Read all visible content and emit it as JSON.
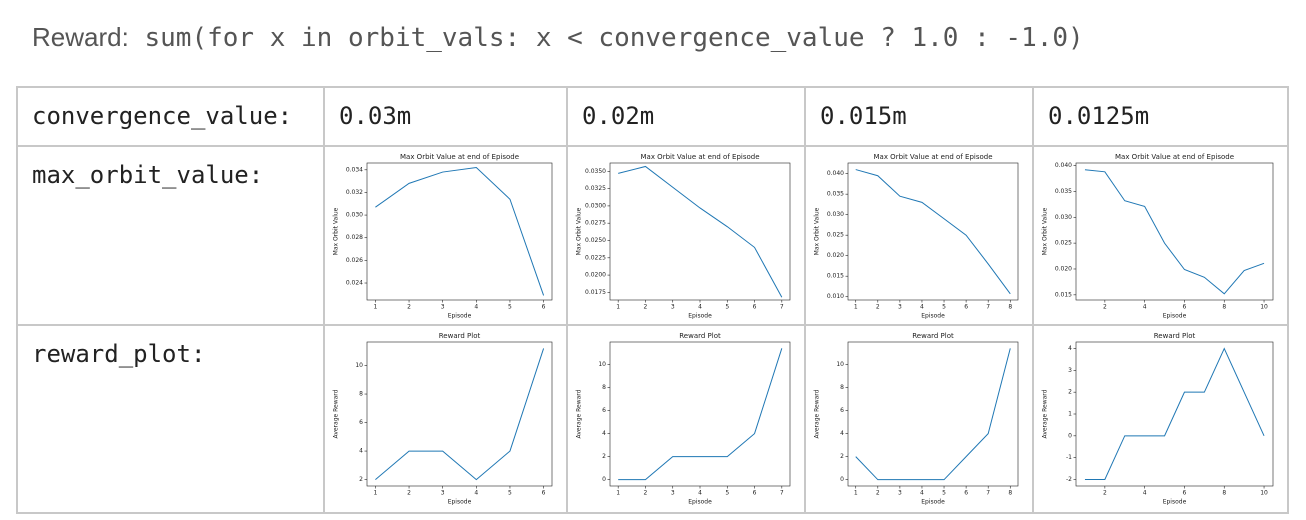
{
  "header": {
    "label": "Reward:",
    "code": "sum(for x in orbit_vals: x < convergence_value ? 1.0 : -1.0)"
  },
  "table": {
    "header_row": [
      "convergence_value:",
      "0.03m",
      "0.02m",
      "0.015m",
      "0.0125m"
    ],
    "rows": [
      {
        "label": "max_orbit_value:",
        "charts": [
          {
            "type": "line",
            "title": "Max Orbit Value at end of Episode",
            "xlabel": "Episode",
            "ylabel": "Max Orbit Value",
            "color": "#1f77b4",
            "x": [
              1,
              2,
              3,
              4,
              5,
              6
            ],
            "values": [
              0.0307,
              0.0328,
              0.0338,
              0.0342,
              0.0314,
              0.0229
            ],
            "xlim": [
              0.75,
              6.25
            ],
            "ylim": [
              0.0225,
              0.0346
            ],
            "xticks": [
              1,
              2,
              3,
              4,
              5,
              6
            ],
            "yticks": [
              0.024,
              0.026,
              0.028,
              {
                "value": 0.03,
                "label": "0.030"
              },
              0.032,
              0.034
            ]
          },
          {
            "type": "line",
            "title": "Max Orbit Value at end of Episode",
            "xlabel": "Episode",
            "ylabel": "Max Orbit Value",
            "color": "#1f77b4",
            "x": [
              1,
              2,
              3,
              4,
              5,
              6,
              7
            ],
            "values": [
              0.0347,
              0.0357,
              0.0327,
              0.0297,
              0.027,
              0.024,
              0.0168
            ],
            "xlim": [
              0.7,
              7.3
            ],
            "ylim": [
              0.0164,
              0.0362
            ],
            "xticks": [
              1,
              2,
              3,
              4,
              5,
              6,
              7
            ],
            "yticks": [
              0.0175,
              {
                "value": 0.02,
                "label": "0.0200"
              },
              0.0225,
              {
                "value": 0.025,
                "label": "0.0250"
              },
              0.0275,
              {
                "value": 0.03,
                "label": "0.0300"
              },
              0.0325,
              {
                "value": 0.035,
                "label": "0.0350"
              }
            ]
          },
          {
            "type": "line",
            "title": "Max Orbit Value at end of Episode",
            "xlabel": "Episode",
            "ylabel": "Max Orbit Value",
            "color": "#1f77b4",
            "x": [
              1,
              2,
              3,
              4,
              5,
              6,
              7,
              8
            ],
            "values": [
              0.041,
              0.0395,
              0.0345,
              0.033,
              0.029,
              0.025,
              0.018,
              0.0107
            ],
            "xlim": [
              0.65,
              8.35
            ],
            "ylim": [
              0.0092,
              0.0426
            ],
            "xticks": [
              1,
              2,
              3,
              4,
              5,
              6,
              7,
              8
            ],
            "yticks": [
              {
                "value": 0.01,
                "label": "0.010"
              },
              0.015,
              {
                "value": 0.02,
                "label": "0.020"
              },
              0.025,
              {
                "value": 0.03,
                "label": "0.030"
              },
              0.035,
              {
                "value": 0.04,
                "label": "0.040"
              }
            ]
          },
          {
            "type": "line",
            "title": "Max Orbit Value at end of Episode",
            "xlabel": "Episode",
            "ylabel": "Max Orbit Value",
            "color": "#1f77b4",
            "x": [
              1,
              2,
              3,
              4,
              5,
              6,
              7,
              8,
              9,
              10
            ],
            "values": [
              0.0392,
              0.0388,
              0.0332,
              0.0321,
              0.025,
              0.0199,
              0.0184,
              0.0152,
              0.0197,
              0.0211
            ],
            "xlim": [
              0.55,
              10.45
            ],
            "ylim": [
              0.014,
              0.0405
            ],
            "xticks": [
              2,
              4,
              6,
              8,
              10
            ],
            "yticks": [
              0.015,
              {
                "value": 0.02,
                "label": "0.020"
              },
              0.025,
              {
                "value": 0.03,
                "label": "0.030"
              },
              0.035,
              {
                "value": 0.04,
                "label": "0.040"
              }
            ]
          }
        ]
      },
      {
        "label": "reward_plot:",
        "charts": [
          {
            "type": "line",
            "title": "Reward Plot",
            "xlabel": "Episode",
            "ylabel": "Average Reward",
            "color": "#1f77b4",
            "x": [
              1,
              2,
              3,
              4,
              5,
              6
            ],
            "values": [
              2,
              4,
              4,
              2,
              4,
              11.2
            ],
            "xlim": [
              0.75,
              6.25
            ],
            "ylim": [
              1.55,
              11.65
            ],
            "xticks": [
              1,
              2,
              3,
              4,
              5,
              6
            ],
            "yticks": [
              2,
              4,
              6,
              8,
              10
            ]
          },
          {
            "type": "line",
            "title": "Reward Plot",
            "xlabel": "Episode",
            "ylabel": "Average Reward",
            "color": "#1f77b4",
            "x": [
              1,
              2,
              3,
              4,
              5,
              6,
              7
            ],
            "values": [
              0,
              0,
              2,
              2,
              2,
              4,
              11.4
            ],
            "xlim": [
              0.7,
              7.3
            ],
            "ylim": [
              -0.55,
              11.95
            ],
            "xticks": [
              1,
              2,
              3,
              4,
              5,
              6,
              7
            ],
            "yticks": [
              0,
              2,
              4,
              6,
              8,
              10
            ]
          },
          {
            "type": "line",
            "title": "Reward Plot",
            "xlabel": "Episode",
            "ylabel": "Average Reward",
            "color": "#1f77b4",
            "x": [
              1,
              2,
              3,
              4,
              5,
              6,
              7,
              8
            ],
            "values": [
              2,
              0,
              0,
              0,
              0,
              2,
              4,
              11.4
            ],
            "xlim": [
              0.65,
              8.35
            ],
            "ylim": [
              -0.55,
              11.95
            ],
            "xticks": [
              1,
              2,
              3,
              4,
              5,
              6,
              7,
              8
            ],
            "yticks": [
              0,
              2,
              4,
              6,
              8,
              10
            ]
          },
          {
            "type": "line",
            "title": "Reward Plot",
            "xlabel": "Episode",
            "ylabel": "Average Reward",
            "color": "#1f77b4",
            "x": [
              1,
              2,
              3,
              4,
              5,
              6,
              7,
              8,
              9,
              10
            ],
            "values": [
              -2,
              -2,
              0,
              0,
              0,
              2,
              2,
              4,
              2,
              0
            ],
            "xlim": [
              0.55,
              10.45
            ],
            "ylim": [
              -2.3,
              4.3
            ],
            "xticks": [
              2,
              4,
              6,
              8,
              10
            ],
            "yticks": [
              -2,
              -1,
              0,
              1,
              2,
              3,
              4
            ]
          }
        ]
      }
    ]
  }
}
